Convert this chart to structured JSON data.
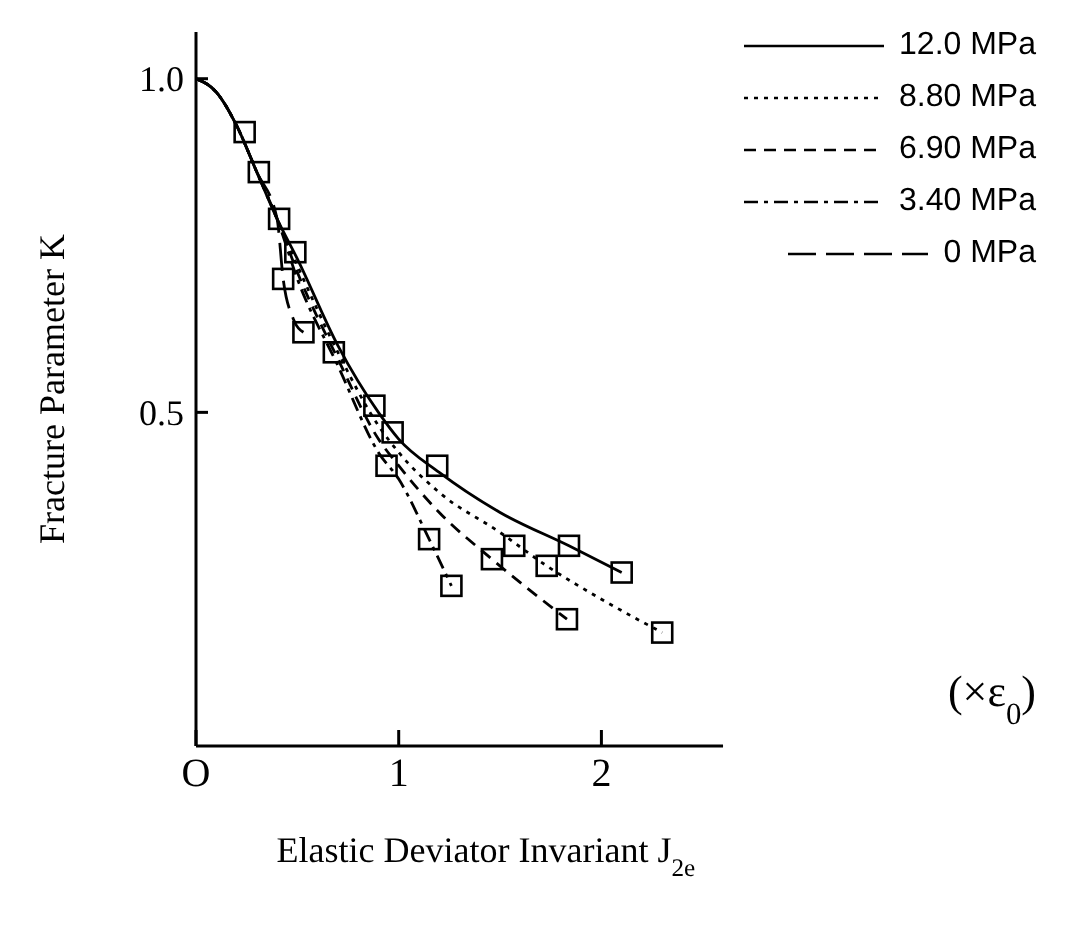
{
  "chart_data": {
    "type": "line",
    "xlabel": "Elastic Deviator Invariant   J$_{2e}$",
    "ylabel": "Fracture Parameter  K",
    "annotations": [
      "(×ε$_{0}$)"
    ],
    "xlim": [
      0,
      2.6
    ],
    "ylim": [
      0,
      1.07
    ],
    "xticks": [
      {
        "value": 0,
        "label": "O"
      },
      1,
      2
    ],
    "yticks": [
      0.5,
      {
        "value": 1,
        "label": "1.0"
      }
    ],
    "grid": false,
    "legend": "top right",
    "marker": "none",
    "series": [
      {
        "name": "12.0 MPa",
        "color": "#000000",
        "line_style": "solid",
        "x": [
          0,
          0.1,
          0.2,
          0.3,
          0.4,
          0.5,
          0.7,
          0.9,
          1.0,
          1.2,
          1.5,
          1.84,
          2.1
        ],
        "values": [
          1,
          0.98,
          0.93,
          0.86,
          0.79,
          0.73,
          0.6,
          0.5,
          0.46,
          0.41,
          0.35,
          0.3,
          0.26
        ]
      },
      {
        "name": "8.80 MPa",
        "color": "#000000",
        "line_style": "dotted",
        "x": [
          0,
          0.1,
          0.2,
          0.3,
          0.4,
          0.5,
          0.7,
          0.9,
          1.0,
          1.2,
          1.5,
          1.73,
          2.0,
          2.3
        ],
        "values": [
          1,
          0.98,
          0.93,
          0.86,
          0.79,
          0.72,
          0.59,
          0.48,
          0.44,
          0.38,
          0.32,
          0.27,
          0.22,
          0.17
        ]
      },
      {
        "name": "6.90 MPa",
        "color": "#000000",
        "line_style": "dashed",
        "x": [
          0,
          0.1,
          0.2,
          0.3,
          0.4,
          0.5,
          0.7,
          0.9,
          1.0,
          1.2,
          1.46,
          1.83
        ],
        "values": [
          1,
          0.98,
          0.93,
          0.86,
          0.79,
          0.71,
          0.58,
          0.46,
          0.42,
          0.35,
          0.28,
          0.19
        ]
      },
      {
        "name": "3.40 MPa",
        "color": "#000000",
        "line_style": "dashdot",
        "x": [
          0,
          0.1,
          0.2,
          0.3,
          0.4,
          0.5,
          0.7,
          0.9,
          1.0,
          1.15,
          1.26
        ],
        "values": [
          1,
          0.98,
          0.93,
          0.86,
          0.79,
          0.7,
          0.57,
          0.44,
          0.4,
          0.31,
          0.24
        ]
      },
      {
        "name": "0 MPa",
        "color": "#000000",
        "line_style": "longdash",
        "x": [
          0,
          0.1,
          0.2,
          0.3,
          0.4,
          0.43,
          0.48,
          0.53
        ],
        "values": [
          1,
          0.98,
          0.93,
          0.86,
          0.79,
          0.7,
          0.64,
          0.62
        ]
      },
      {
        "type": "scatter",
        "marker": "square",
        "color": "#000000",
        "x": [
          0.24,
          0.31,
          0.41,
          0.49,
          0.43,
          0.53,
          0.68,
          0.88,
          0.97,
          0.94,
          1.19,
          1.15,
          1.26,
          1.46,
          1.57,
          1.73,
          1.84,
          1.83,
          2.1,
          2.3
        ],
        "values": [
          0.92,
          0.86,
          0.79,
          0.74,
          0.7,
          0.62,
          0.59,
          0.51,
          0.47,
          0.42,
          0.42,
          0.31,
          0.24,
          0.28,
          0.3,
          0.27,
          0.3,
          0.19,
          0.26,
          0.17
        ]
      }
    ]
  }
}
